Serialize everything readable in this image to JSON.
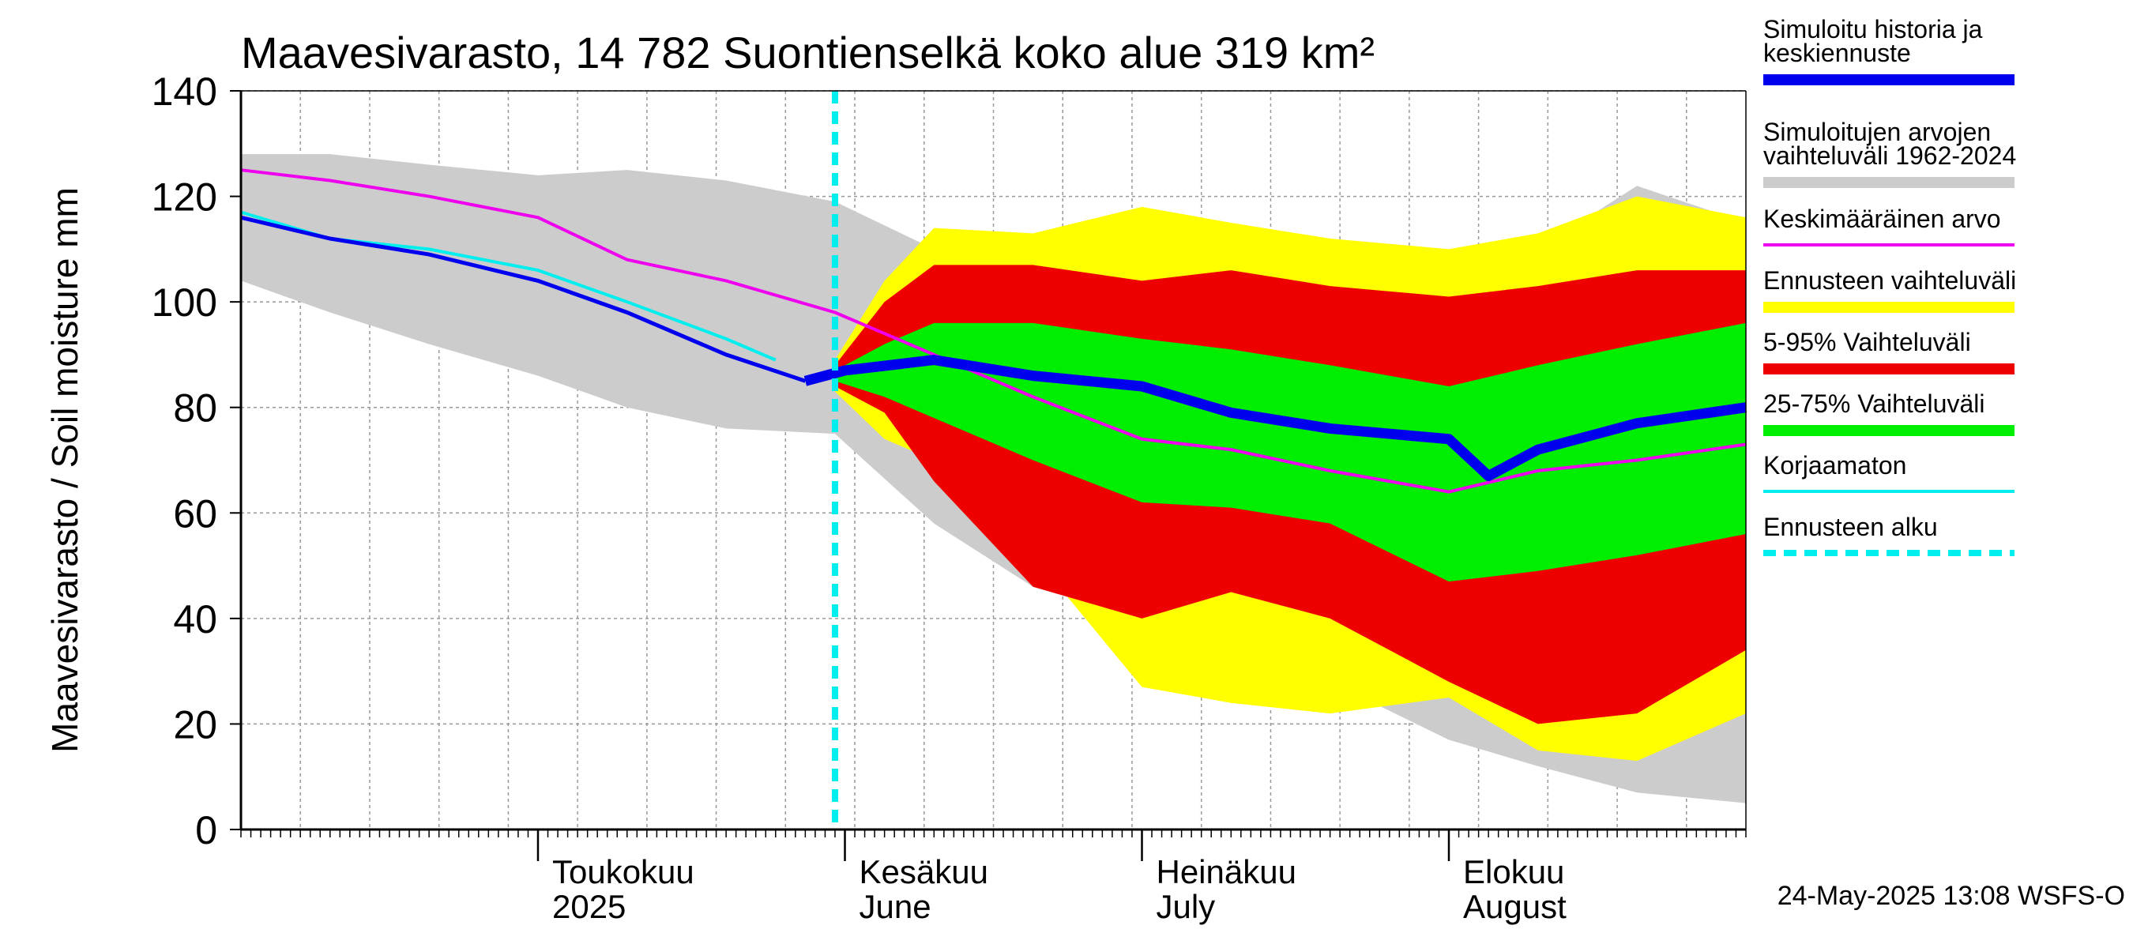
{
  "chart_data": {
    "type": "area",
    "title": "Maavesivarasto, 14 782 Suontienselkä koko alue 319 km²",
    "ylabel": "Maavesivarasto / Soil moisture   mm",
    "ylim": [
      0,
      140
    ],
    "yticks": [
      0,
      20,
      40,
      60,
      80,
      100,
      120,
      140
    ],
    "xlim": [
      "2025-04-01",
      "2025-08-31"
    ],
    "grid": true,
    "x_labels": [
      {
        "date": "2025-05-01",
        "line1": "Toukokuu",
        "line2": "2025"
      },
      {
        "date": "2025-06-01",
        "line1": "Kesäkuu",
        "line2": "June"
      },
      {
        "date": "2025-07-01",
        "line1": "Heinäkuu",
        "line2": "July"
      },
      {
        "date": "2025-08-01",
        "line1": "Elokuu",
        "line2": "August"
      }
    ],
    "forecast_start": "2025-05-31",
    "footer": "24-May-2025 13:08 WSFS-O",
    "legend": [
      {
        "label": "Simuloitu historia ja keskiennuste",
        "color": "#0000ee",
        "style": "thick"
      },
      {
        "label": "Simuloitujen arvojen vaihteluväli 1962-2024",
        "color": "#cccccc",
        "style": "band"
      },
      {
        "label": "Keskimääräinen arvo",
        "color": "#ee00ee",
        "style": "line"
      },
      {
        "label": "Ennusteen vaihteluväli",
        "color": "#ffff00",
        "style": "band"
      },
      {
        "label": "5-95% Vaihteluväli",
        "color": "#ee0000",
        "style": "band"
      },
      {
        "label": "25-75% Vaihteluväli",
        "color": "#00ee00",
        "style": "band"
      },
      {
        "label": "Korjaamaton",
        "color": "#00eeee",
        "style": "line"
      },
      {
        "label": "Ennusteen alku",
        "color": "#00eeee",
        "style": "dashed"
      }
    ],
    "series": [
      {
        "name": "Simuloitujen arvojen vaihteluväli 1962-2024",
        "kind": "band",
        "color": "#cccccc",
        "x": [
          "2025-04-01",
          "2025-04-10",
          "2025-04-20",
          "2025-05-01",
          "2025-05-10",
          "2025-05-20",
          "2025-05-31",
          "2025-06-10",
          "2025-06-20",
          "2025-07-01",
          "2025-07-10",
          "2025-07-20",
          "2025-08-01",
          "2025-08-10",
          "2025-08-20",
          "2025-08-31"
        ],
        "low": [
          104,
          98,
          92,
          86,
          80,
          76,
          75,
          58,
          46,
          40,
          35,
          28,
          17,
          12,
          7,
          5
        ],
        "high": [
          128,
          128,
          126,
          124,
          125,
          123,
          119,
          110,
          112,
          116,
          110,
          106,
          108,
          110,
          122,
          115
        ]
      },
      {
        "name": "Ennusteen vaihteluväli",
        "kind": "band",
        "color": "#ffff00",
        "x": [
          "2025-05-31",
          "2025-06-05",
          "2025-06-10",
          "2025-06-20",
          "2025-07-01",
          "2025-07-10",
          "2025-07-20",
          "2025-08-01",
          "2025-08-10",
          "2025-08-20",
          "2025-08-31"
        ],
        "low": [
          83,
          74,
          70,
          52,
          27,
          24,
          22,
          25,
          15,
          13,
          22
        ],
        "high": [
          89,
          104,
          114,
          113,
          118,
          115,
          112,
          110,
          113,
          120,
          116
        ]
      },
      {
        "name": "5-95% Vaihteluväli",
        "kind": "band",
        "color": "#ee0000",
        "x": [
          "2025-05-31",
          "2025-06-05",
          "2025-06-10",
          "2025-06-20",
          "2025-07-01",
          "2025-07-10",
          "2025-07-20",
          "2025-08-01",
          "2025-08-10",
          "2025-08-20",
          "2025-08-31"
        ],
        "low": [
          84,
          79,
          66,
          46,
          40,
          45,
          40,
          28,
          20,
          22,
          34
        ],
        "high": [
          88,
          100,
          107,
          107,
          104,
          106,
          103,
          101,
          103,
          106,
          106
        ]
      },
      {
        "name": "25-75% Vaihteluväli",
        "kind": "band",
        "color": "#00ee00",
        "x": [
          "2025-05-31",
          "2025-06-05",
          "2025-06-10",
          "2025-06-20",
          "2025-07-01",
          "2025-07-10",
          "2025-07-20",
          "2025-08-01",
          "2025-08-10",
          "2025-08-20",
          "2025-08-31"
        ],
        "low": [
          85,
          82,
          78,
          70,
          62,
          61,
          58,
          47,
          49,
          52,
          56
        ],
        "high": [
          87,
          92,
          96,
          96,
          93,
          91,
          88,
          84,
          88,
          92,
          96
        ]
      },
      {
        "name": "Keskimääräinen arvo",
        "kind": "line",
        "color": "#ee00ee",
        "x": [
          "2025-04-01",
          "2025-04-10",
          "2025-04-20",
          "2025-05-01",
          "2025-05-10",
          "2025-05-20",
          "2025-05-31",
          "2025-06-10",
          "2025-06-20",
          "2025-07-01",
          "2025-07-10",
          "2025-07-20",
          "2025-08-01",
          "2025-08-10",
          "2025-08-20",
          "2025-08-31"
        ],
        "y": [
          125,
          123,
          120,
          116,
          108,
          104,
          98,
          90,
          82,
          74,
          72,
          68,
          64,
          68,
          70,
          73
        ]
      },
      {
        "name": "Korjaamaton",
        "kind": "line",
        "color": "#00eeee",
        "x": [
          "2025-04-01",
          "2025-04-10",
          "2025-04-20",
          "2025-05-01",
          "2025-05-10",
          "2025-05-20",
          "2025-05-25"
        ],
        "y": [
          117,
          112,
          110,
          106,
          100,
          93,
          89
        ]
      },
      {
        "name": "Simuloitu historia ja keskiennuste",
        "kind": "line",
        "color": "#0000ee",
        "x": [
          "2025-04-01",
          "2025-04-10",
          "2025-04-20",
          "2025-05-01",
          "2025-05-10",
          "2025-05-20",
          "2025-05-28",
          "2025-06-01",
          "2025-06-10",
          "2025-06-20",
          "2025-07-01",
          "2025-07-10",
          "2025-07-20",
          "2025-08-01",
          "2025-08-05",
          "2025-08-10",
          "2025-08-20",
          "2025-08-31"
        ],
        "y": [
          116,
          112,
          109,
          104,
          98,
          90,
          85,
          87,
          89,
          86,
          84,
          79,
          76,
          74,
          67,
          72,
          77,
          80
        ]
      }
    ]
  }
}
